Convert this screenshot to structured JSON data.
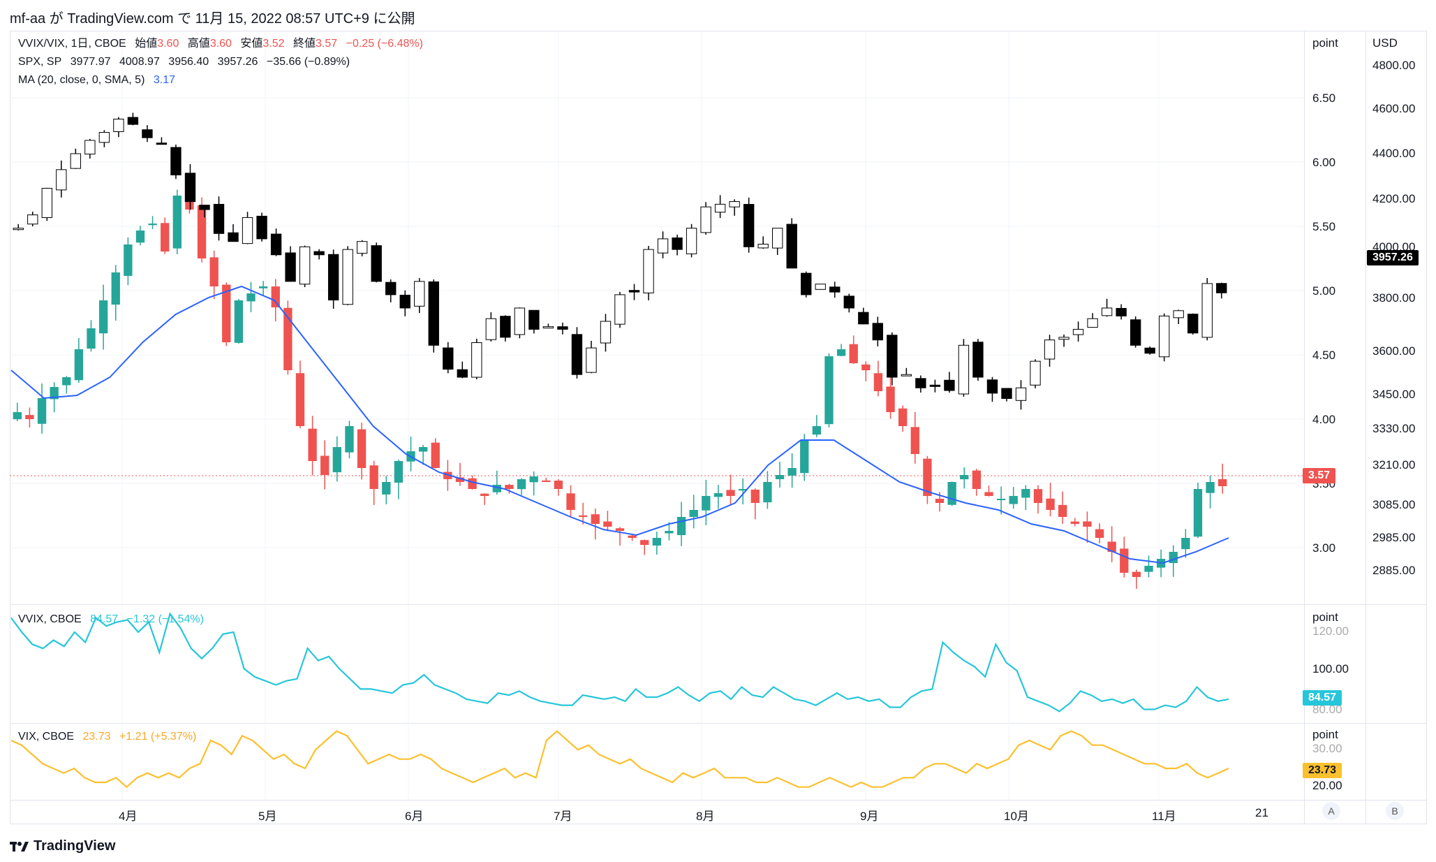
{
  "header": {
    "text": "mf-aa が TradingView.com で 11月 15, 2022 08:57 UTC+9 に公開"
  },
  "legend_main": {
    "title": "VVIX/VIX, 1日, CBOE",
    "open_label": "始値",
    "open": "3.60",
    "high_label": "高値",
    "high": "3.60",
    "low_label": "安値",
    "low": "3.52",
    "close_label": "終値",
    "close": "3.57",
    "change": "−0.25 (−6.48%)"
  },
  "legend_spx": {
    "title": "SPX, SP",
    "o": "3977.97",
    "h": "4008.97",
    "l": "3956.40",
    "c": "3957.26",
    "change": "−35.66 (−0.89%)"
  },
  "legend_ma": {
    "title": "MA (20, close, 0, SMA, 5)",
    "value": "3.17"
  },
  "legend_vvix": {
    "title": "VVIX, CBOE",
    "value": "84.57",
    "change": "−1.32 (−1.54%)"
  },
  "legend_vix": {
    "title": "VIX, CBOE",
    "value": "23.73",
    "change": "+1.21 (+5.37%)"
  },
  "axis_units": {
    "left": "point",
    "right": "USD",
    "vvix": "point",
    "vix": "point"
  },
  "left_ticks": [
    "6.50",
    "6.00",
    "5.50",
    "5.00",
    "4.50",
    "4.00",
    "3.50",
    "3.00"
  ],
  "right_ticks": [
    "4800.00",
    "4600.00",
    "4400.00",
    "4200.00",
    "4000.00",
    "3800.00",
    "3600.00",
    "3450.00",
    "3330.00",
    "3210.00",
    "3085.00",
    "2985.00",
    "2885.00"
  ],
  "vvix_ticks": [
    "120.00",
    "100.00",
    "80.00"
  ],
  "vix_ticks": [
    "30.00",
    "20.00"
  ],
  "badges": {
    "ratio": "3.57",
    "spx": "3957.26",
    "vvix": "84.57",
    "vix": "23.73"
  },
  "x_ticks": [
    "4月",
    "5月",
    "6月",
    "7月",
    "8月",
    "9月",
    "10月",
    "11月",
    "21"
  ],
  "scale_buttons": [
    "A",
    "B"
  ],
  "footer": {
    "brand": "TradingView"
  },
  "colors": {
    "up": "#26a69a",
    "down": "#ef5350",
    "ma": "#2962ff",
    "vvix": "#26c6da",
    "vix": "#fbc02d",
    "spx": "#000000"
  },
  "chart_data": [
    {
      "type": "candlestick",
      "series_name": "VVIX/VIX, 1日, CBOE",
      "ylim": [
        2.75,
        6.75
      ],
      "x_start": "2022-03-11",
      "x_end": "2022-11-14",
      "close_approx": [
        4.1,
        4.05,
        4.2,
        4.28,
        4.35,
        4.55,
        4.7,
        4.9,
        5.1,
        5.3,
        5.4,
        5.45,
        5.25,
        5.65,
        5.55,
        5.2,
        5.0,
        4.6,
        4.9,
        4.95,
        5.0,
        4.85,
        4.4,
        4.0,
        3.75,
        3.65,
        3.85,
        4.0,
        3.7,
        3.55,
        3.6,
        3.75,
        3.82,
        3.85,
        3.7,
        3.62,
        3.6,
        3.55,
        3.5,
        3.58,
        3.55,
        3.62,
        3.64,
        3.6,
        3.55,
        3.4,
        3.35,
        3.3,
        3.28,
        3.25,
        3.2,
        3.15,
        3.2,
        3.25,
        3.35,
        3.4,
        3.5,
        3.52,
        3.5,
        3.55,
        3.45,
        3.6,
        3.65,
        3.7,
        3.9,
        4.0,
        4.5,
        4.55,
        4.45,
        4.4,
        4.25,
        4.1,
        4.0,
        3.8,
        3.5,
        3.45,
        3.6,
        3.65,
        3.55,
        3.5,
        3.48,
        3.5,
        3.55,
        3.45,
        3.4,
        3.35,
        3.3,
        3.28,
        3.2,
        3.1,
        2.95,
        2.92,
        3.0,
        3.05,
        3.1,
        3.2,
        3.55,
        3.6,
        3.57
      ],
      "ma20_approx": [
        4.4,
        4.2,
        4.22,
        4.35,
        4.6,
        4.8,
        4.92,
        5.0,
        4.9,
        4.6,
        4.3,
        4.0,
        3.8,
        3.67,
        3.6,
        3.55,
        3.45,
        3.35,
        3.26,
        3.22,
        3.3,
        3.35,
        3.45,
        3.72,
        3.9,
        3.9,
        3.75,
        3.6,
        3.52,
        3.45,
        3.4,
        3.3,
        3.25,
        3.15,
        3.05,
        3.02,
        3.1,
        3.2
      ]
    },
    {
      "type": "candlestick",
      "series_name": "SPX, SP",
      "ylim": [
        2800,
        4900
      ],
      "last": 3957.26,
      "close_approx": [
        4200,
        4250,
        4350,
        4420,
        4480,
        4530,
        4560,
        4610,
        4590,
        4540,
        4520,
        4400,
        4300,
        4270,
        4180,
        4150,
        4240,
        4160,
        4100,
        4000,
        4130,
        4100,
        3930,
        4120,
        4150,
        4000,
        3950,
        3900,
        4000,
        3760,
        3670,
        3640,
        3770,
        3860,
        3790,
        3900,
        3820,
        3830,
        3820,
        3650,
        3750,
        3850,
        3950,
        3960,
        4120,
        4160,
        4120,
        4200,
        4280,
        4290,
        4300,
        4130,
        4140,
        4200,
        4050,
        3950,
        3990,
        3960,
        3900,
        3840,
        3780,
        3640,
        3650,
        3600,
        3610,
        3590,
        3760,
        3640,
        3580,
        3560,
        3600,
        3700,
        3780,
        3790,
        3820,
        3860,
        3900,
        3870,
        3760,
        3730,
        3870,
        3890,
        3806,
        3992,
        3957
      ]
    },
    {
      "type": "line",
      "series_name": "VVIX, CBOE",
      "ylim": [
        75,
        130
      ],
      "values": [
        125,
        118,
        112,
        110,
        114,
        111,
        118,
        113,
        125,
        121,
        123,
        124,
        118,
        123,
        108,
        127,
        120,
        110,
        105,
        110,
        117,
        118,
        100,
        96,
        94,
        92,
        94,
        95,
        110,
        104,
        106,
        100,
        95,
        90,
        90,
        89,
        88,
        92,
        93,
        97,
        92,
        90,
        88,
        85,
        84,
        83,
        88,
        87,
        89,
        86,
        84,
        83,
        82,
        82,
        87,
        86,
        85,
        86,
        84,
        90,
        86,
        86,
        88,
        91,
        87,
        84,
        88,
        89,
        85,
        91,
        87,
        86,
        91,
        88,
        85,
        84,
        82,
        85,
        88,
        85,
        86,
        84,
        85,
        81,
        81,
        86,
        89,
        90,
        113,
        108,
        104,
        101,
        96,
        112,
        103,
        99,
        86,
        84,
        82,
        79,
        83,
        89,
        87,
        84,
        85,
        83,
        85,
        80,
        80,
        82,
        81,
        84,
        91,
        86,
        84,
        85
      ]
    },
    {
      "type": "line",
      "series_name": "VIX, CBOE",
      "ylim": [
        18,
        33
      ],
      "values": [
        30,
        29,
        27,
        25,
        24,
        23,
        24,
        22,
        21,
        21,
        22,
        20,
        22,
        23,
        22,
        23,
        22,
        24,
        25,
        30,
        29,
        27,
        31,
        30,
        28,
        26,
        27,
        25,
        24,
        28,
        30,
        32,
        31,
        28,
        25,
        26,
        27,
        26,
        26,
        27,
        26,
        24,
        23,
        22,
        21,
        22,
        23,
        24,
        22,
        23,
        22,
        30,
        32,
        30,
        28,
        29,
        27,
        26,
        25,
        26,
        24,
        23,
        22,
        21,
        23,
        22,
        23,
        24,
        22,
        22,
        22,
        21,
        21,
        22,
        21,
        20,
        20,
        21,
        22,
        21,
        20,
        21,
        20,
        20,
        21,
        22,
        22,
        24,
        25,
        25,
        24,
        23,
        25,
        24,
        25,
        26,
        29,
        30,
        29,
        28,
        31,
        32,
        31,
        29,
        29,
        28,
        27,
        26,
        25,
        25,
        24,
        24,
        25,
        23,
        22,
        23,
        24
      ]
    }
  ]
}
